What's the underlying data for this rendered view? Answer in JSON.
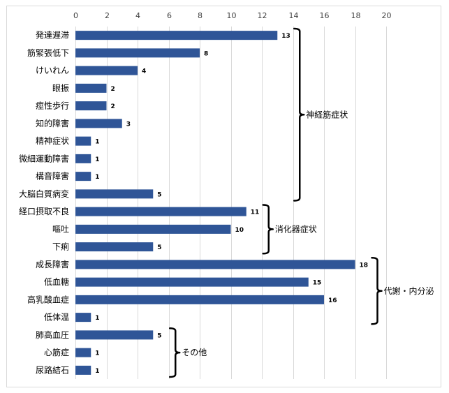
{
  "chart_data": {
    "type": "bar",
    "orientation": "horizontal",
    "title": "",
    "xlabel": "",
    "ylabel": "",
    "xlim": [
      0,
      20
    ],
    "xticks": [
      "0",
      "2",
      "4",
      "6",
      "8",
      "10",
      "12",
      "14",
      "16",
      "18",
      "20"
    ],
    "grid": true,
    "bar_color": "#2f5597",
    "categories": [
      "発達遅滞",
      "筋緊張低下",
      "けいれん",
      "眼振",
      "痙性歩行",
      "知的障害",
      "精神症状",
      "微細運動障害",
      "構音障害",
      "大脳白質病変",
      "経口摂取不良",
      "嘔吐",
      "下痢",
      "成長障害",
      "低血糖",
      "高乳酸血症",
      "低体温",
      "肺高血圧",
      "心筋症",
      "尿路結石"
    ],
    "values": [
      13,
      8,
      4,
      2,
      2,
      3,
      1,
      1,
      1,
      5,
      11,
      10,
      5,
      18,
      15,
      16,
      1,
      5,
      1,
      1
    ],
    "data_labels": [
      "13",
      "8",
      "4",
      "2",
      "2",
      "3",
      "1",
      "1",
      "1",
      "5",
      "11",
      "10",
      "5",
      "18",
      "15",
      "16",
      "1",
      "5",
      "1",
      "1"
    ],
    "groups": [
      {
        "label": "神経筋症状",
        "from": 0,
        "to": 9
      },
      {
        "label": "消化器症状",
        "from": 10,
        "to": 12
      },
      {
        "label": "代謝・内分泌",
        "from": 13,
        "to": 16
      },
      {
        "label": "その他",
        "from": 17,
        "to": 19
      }
    ]
  }
}
